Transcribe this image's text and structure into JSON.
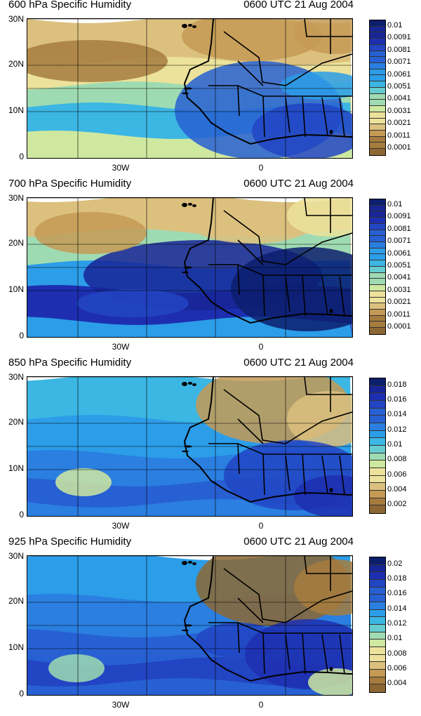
{
  "palette": [
    "#8d6733",
    "#a67c3e",
    "#c49a55",
    "#dcc07e",
    "#ece29b",
    "#cfe8a0",
    "#9fdbb2",
    "#66ccd0",
    "#3cb6e3",
    "#2c9de8",
    "#2a7fe0",
    "#2760d2",
    "#2245c4",
    "#1d2fb0",
    "#172596",
    "#0c1f6d"
  ],
  "panels": [
    {
      "title": "600 hPa Specific Humidity",
      "time": "0600 UTC 21 Aug 2004",
      "colorbar_labels": [
        "0.01",
        "0.0091",
        "0.0081",
        "0.0071",
        "0.0061",
        "0.0051",
        "0.0041",
        "0.0031",
        "0.0021",
        "0.0011",
        "0.0001"
      ],
      "ylabels": [
        "30N",
        "20N",
        "10N",
        "0"
      ],
      "xlabels": [
        "30W",
        "0"
      ]
    },
    {
      "title": "700 hPa Specific Humidity",
      "time": "0600 UTC 21 Aug 2004",
      "colorbar_labels": [
        "0.01",
        "0.0091",
        "0.0081",
        "0.0071",
        "0.0061",
        "0.0051",
        "0.0041",
        "0.0031",
        "0.0021",
        "0.0011",
        "0.0001"
      ],
      "ylabels": [
        "30N",
        "20N",
        "10N",
        "0"
      ],
      "xlabels": [
        "30W",
        "0"
      ]
    },
    {
      "title": "850 hPa Specific Humidity",
      "time": "0600 UTC 21 Aug 2004",
      "colorbar_labels": [
        "0.018",
        "0.016",
        "0.014",
        "0.012",
        "0.01",
        "0.008",
        "0.006",
        "0.004",
        "0.002"
      ],
      "ylabels": [
        "30N",
        "20N",
        "10N",
        "0"
      ],
      "xlabels": [
        "30W",
        "0"
      ]
    },
    {
      "title": "925 hPa Specific Humidity",
      "time": "0600 UTC 21 Aug 2004",
      "colorbar_labels": [
        "0.02",
        "0.018",
        "0.016",
        "0.014",
        "0.012",
        "0.01",
        "0.008",
        "0.006",
        "0.004"
      ],
      "ylabels": [
        "30N",
        "20N",
        "10N",
        "0"
      ],
      "xlabels": [
        "30W",
        "0"
      ]
    }
  ]
}
